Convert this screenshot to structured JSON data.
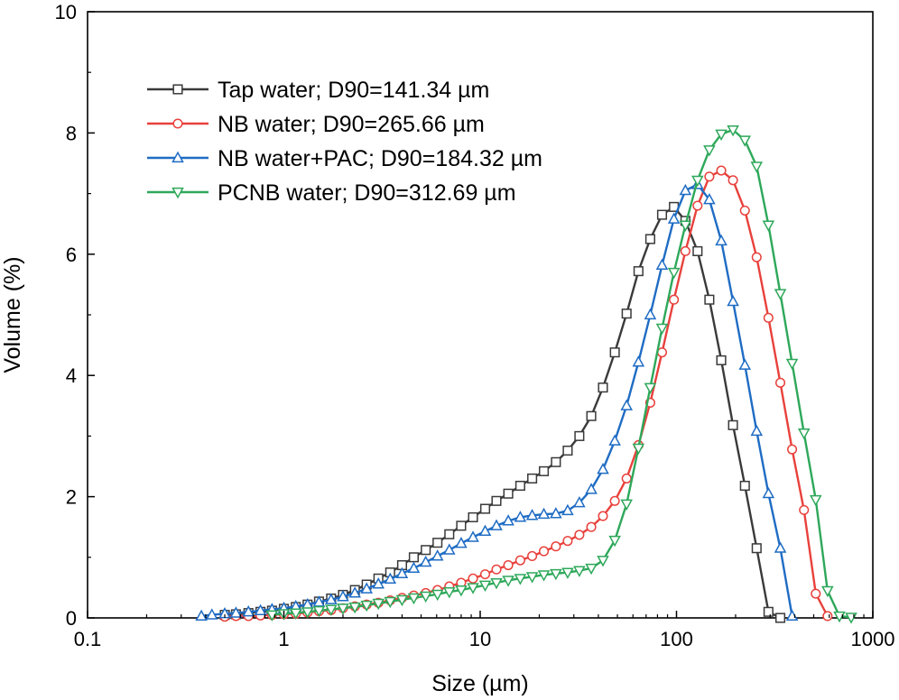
{
  "chart_data": {
    "type": "line",
    "xlabel": "Size (µm)",
    "ylabel": "Volume (%)",
    "x_scale": "log",
    "xlim": [
      0.1,
      1000
    ],
    "ylim": [
      0,
      10
    ],
    "x_ticks": [
      0.1,
      1,
      10,
      100,
      1000
    ],
    "x_tick_labels": [
      "0.1",
      "1",
      "10",
      "100",
      "1000"
    ],
    "y_ticks": [
      0,
      2,
      4,
      6,
      8,
      10
    ],
    "y_tick_labels": [
      "0",
      "2",
      "4",
      "6",
      "8",
      "10"
    ],
    "grid": false,
    "legend_position": "top-left",
    "series": [
      {
        "name": "Tap water; D90=141.34 µm",
        "color": "#3a3a3a",
        "marker": "square",
        "x": [
          0.5,
          0.57,
          0.66,
          0.76,
          0.87,
          1.0,
          1.15,
          1.32,
          1.51,
          1.74,
          2.0,
          2.3,
          2.64,
          3.03,
          3.48,
          4.0,
          4.59,
          5.28,
          6.06,
          6.96,
          8.0,
          9.19,
          10.6,
          12.1,
          13.9,
          16.0,
          18.4,
          21.1,
          24.3,
          27.9,
          32.0,
          36.8,
          42.2,
          48.5,
          55.7,
          64.0,
          73.5,
          84.4,
          97.0,
          111,
          128,
          147,
          169,
          194,
          223,
          256,
          294,
          338
        ],
        "y": [
          0.05,
          0.06,
          0.08,
          0.1,
          0.12,
          0.15,
          0.18,
          0.22,
          0.27,
          0.32,
          0.38,
          0.46,
          0.55,
          0.65,
          0.75,
          0.87,
          1.0,
          1.12,
          1.24,
          1.38,
          1.52,
          1.66,
          1.8,
          1.93,
          2.05,
          2.18,
          2.3,
          2.42,
          2.57,
          2.76,
          3.0,
          3.33,
          3.8,
          4.38,
          5.02,
          5.72,
          6.25,
          6.65,
          6.78,
          6.55,
          6.05,
          5.25,
          4.25,
          3.18,
          2.18,
          1.15,
          0.1,
          0.0
        ]
      },
      {
        "name": "NB water; D90=265.66 µm",
        "color": "#e8413c",
        "marker": "circle",
        "x": [
          0.5,
          0.57,
          0.66,
          0.76,
          0.87,
          1.0,
          1.15,
          1.32,
          1.51,
          1.74,
          2.0,
          2.3,
          2.64,
          3.03,
          3.48,
          4.0,
          4.59,
          5.28,
          6.06,
          6.96,
          8.0,
          9.19,
          10.6,
          12.1,
          13.9,
          16.0,
          18.4,
          21.1,
          24.3,
          27.9,
          32.0,
          36.8,
          42.2,
          48.5,
          55.7,
          64.0,
          73.5,
          84.4,
          97.0,
          111,
          128,
          147,
          169,
          194,
          223,
          256,
          294,
          338,
          388,
          446,
          512,
          588
        ],
        "y": [
          0.02,
          0.03,
          0.03,
          0.04,
          0.05,
          0.06,
          0.07,
          0.09,
          0.11,
          0.13,
          0.16,
          0.19,
          0.22,
          0.25,
          0.29,
          0.33,
          0.37,
          0.41,
          0.46,
          0.52,
          0.58,
          0.65,
          0.72,
          0.8,
          0.87,
          0.95,
          1.02,
          1.1,
          1.18,
          1.27,
          1.37,
          1.5,
          1.68,
          1.93,
          2.3,
          2.85,
          3.55,
          4.38,
          5.25,
          6.05,
          6.8,
          7.28,
          7.38,
          7.22,
          6.72,
          5.95,
          4.95,
          3.88,
          2.78,
          1.78,
          0.4,
          0.03
        ]
      },
      {
        "name": "NB water+PAC; D90=184.32 µm",
        "color": "#1f6cc4",
        "marker": "triangle-up",
        "x": [
          0.38,
          0.43,
          0.5,
          0.57,
          0.66,
          0.76,
          0.87,
          1.0,
          1.15,
          1.32,
          1.51,
          1.74,
          2.0,
          2.3,
          2.64,
          3.03,
          3.48,
          4.0,
          4.59,
          5.28,
          6.06,
          6.96,
          8.0,
          9.19,
          10.6,
          12.1,
          13.9,
          16.0,
          18.4,
          21.1,
          24.3,
          27.9,
          32.0,
          36.8,
          42.2,
          48.5,
          55.7,
          64.0,
          73.5,
          84.4,
          97.0,
          111,
          128,
          147,
          169,
          194,
          223,
          256,
          294,
          338,
          388
        ],
        "y": [
          0.03,
          0.05,
          0.07,
          0.08,
          0.1,
          0.12,
          0.14,
          0.16,
          0.19,
          0.22,
          0.26,
          0.3,
          0.35,
          0.41,
          0.48,
          0.56,
          0.64,
          0.73,
          0.82,
          0.92,
          1.02,
          1.12,
          1.23,
          1.33,
          1.43,
          1.52,
          1.6,
          1.66,
          1.69,
          1.71,
          1.72,
          1.77,
          1.9,
          2.12,
          2.45,
          2.92,
          3.5,
          4.22,
          5.0,
          5.82,
          6.58,
          7.05,
          7.15,
          6.9,
          6.22,
          5.22,
          4.17,
          3.08,
          2.05,
          1.15,
          0.03
        ]
      },
      {
        "name": "PCNB water; D90=312.69 µm",
        "color": "#2ea85a",
        "marker": "triangle-down",
        "x": [
          0.87,
          1.0,
          1.15,
          1.32,
          1.51,
          1.74,
          2.0,
          2.3,
          2.64,
          3.03,
          3.48,
          4.0,
          4.59,
          5.28,
          6.06,
          6.96,
          8.0,
          9.19,
          10.6,
          12.1,
          13.9,
          16.0,
          18.4,
          21.1,
          24.3,
          27.9,
          32.0,
          36.8,
          42.2,
          48.5,
          55.7,
          64.0,
          73.5,
          84.4,
          97.0,
          111,
          128,
          147,
          169,
          194,
          223,
          256,
          294,
          338,
          388,
          446,
          512,
          588,
          676,
          776
        ],
        "y": [
          0.05,
          0.07,
          0.08,
          0.1,
          0.12,
          0.14,
          0.16,
          0.18,
          0.21,
          0.24,
          0.27,
          0.3,
          0.33,
          0.36,
          0.39,
          0.43,
          0.46,
          0.5,
          0.54,
          0.58,
          0.62,
          0.65,
          0.68,
          0.71,
          0.73,
          0.75,
          0.78,
          0.82,
          0.95,
          1.28,
          1.88,
          2.8,
          3.8,
          4.78,
          5.7,
          6.48,
          7.22,
          7.72,
          7.98,
          8.05,
          7.88,
          7.45,
          6.48,
          5.35,
          4.2,
          3.05,
          1.95,
          0.45,
          0.03,
          0.01
        ]
      }
    ]
  }
}
